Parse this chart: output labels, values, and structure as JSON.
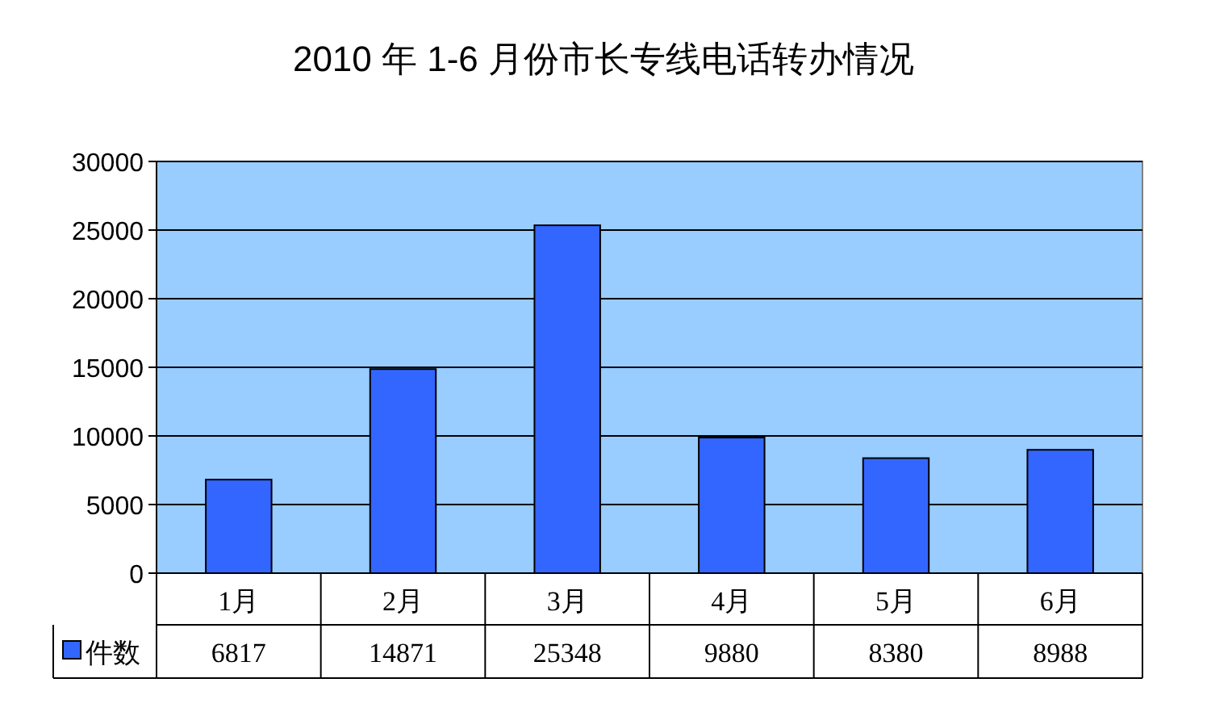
{
  "chart_data": {
    "type": "bar",
    "title": "2010 年 1-6 月份市长专线电话转办情况",
    "categories": [
      "1月",
      "2月",
      "3月",
      "4月",
      "5月",
      "6月"
    ],
    "series": [
      {
        "name": "件数",
        "color": "#3366ff",
        "values": [
          6817,
          14871,
          25348,
          9880,
          8380,
          8988
        ]
      }
    ],
    "ylim": [
      0,
      30000
    ],
    "yticks": [
      0,
      5000,
      10000,
      15000,
      20000,
      25000,
      30000
    ],
    "grid": "y",
    "legend": "bottom left",
    "data_labels": true
  }
}
